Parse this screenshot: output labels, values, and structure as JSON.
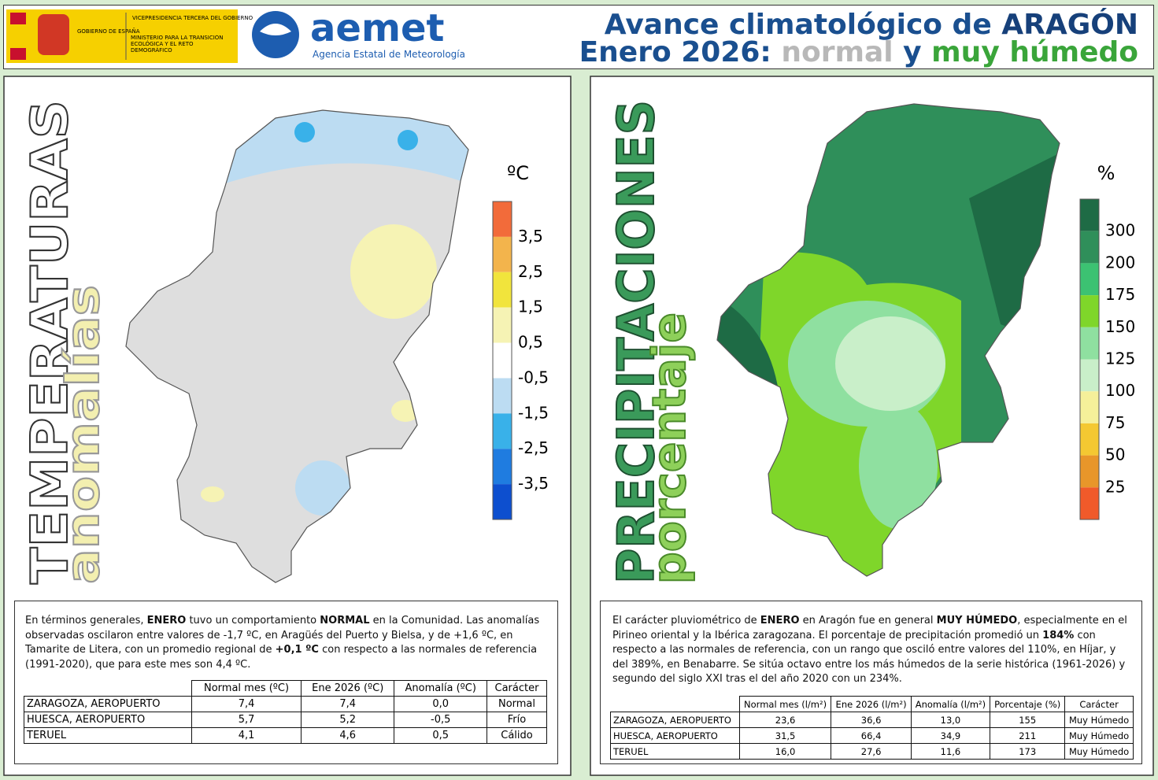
{
  "header": {
    "gov": [
      "GOBIERNO DE ESPAÑA",
      "VICEPRESIDENCIA TERCERA DEL GOBIERNO",
      "MINISTERIO PARA LA TRANSICIÓN ECOLÓGICA Y EL RETO DEMOGRÁFICO"
    ],
    "brand": "aemet",
    "agency": "Agencia Estatal de Meteorología",
    "title_line1": [
      {
        "text": "Avance climatológico de ",
        "color": "#1a4f8f"
      },
      {
        "text": "ARAGÓN",
        "color": "#16407a"
      }
    ],
    "title_line2": [
      {
        "text": "Enero 2026: ",
        "color": "#1a4f8f"
      },
      {
        "text": "normal",
        "color": "#b8b8b8"
      },
      {
        "text": " y ",
        "color": "#1a4f8f"
      },
      {
        "text": "muy húmedo",
        "color": "#3aa53a"
      }
    ]
  },
  "temperature": {
    "heading": "TEMPERATURAS",
    "subheading": "anomalías",
    "legend_unit": "ºC",
    "legend_colors": [
      "#f26b3a",
      "#f3b44c",
      "#f1e43c",
      "#f6f3b4",
      "#ffffff",
      "#bcdcf2",
      "#39b1e9",
      "#1f7ce0",
      "#0d4fcf"
    ],
    "legend_labels": [
      "3,5",
      "2,5",
      "1,5",
      "0,5",
      "-0,5",
      "-1,5",
      "-2,5",
      "-3,5"
    ],
    "paragraph": [
      "En términos generales, ",
      "ENERO",
      " tuvo un comportamiento ",
      "NORMAL",
      " en la Comunidad. Las anomalías observadas oscilaron entre valores de -1,7 ºC, en Aragüés del Puerto y Bielsa, y de +1,6 ºC, en Tamarite de Litera, con un promedio regional de ",
      "+0,1 ºC",
      " con respecto a las normales de referencia (1991-2020), que para este mes son 4,4 ºC."
    ],
    "table": {
      "header": [
        "Normal mes (ºC)",
        "Ene 2026 (ºC)",
        "Anomalía (ºC)",
        "Carácter"
      ],
      "rows": [
        [
          "ZARAGOZA, AEROPUERTO",
          "7,4",
          "7,4",
          "0,0",
          "Normal"
        ],
        [
          "HUESCA, AEROPUERTO",
          "5,7",
          "5,2",
          "-0,5",
          "Frío"
        ],
        [
          "TERUEL",
          "4,1",
          "4,6",
          "0,5",
          "Cálido"
        ]
      ]
    }
  },
  "precipitation": {
    "heading": "PRECIPITACIONES",
    "subheading": "porcentaje",
    "legend_unit": "%",
    "legend_colors": [
      "#1e6b45",
      "#2f8f5a",
      "#3cc272",
      "#7fd62a",
      "#8fe0a0",
      "#c9efc9",
      "#f5f09a",
      "#f4c832",
      "#e8962a",
      "#f05a2a"
    ],
    "legend_labels": [
      "300",
      "200",
      "175",
      "150",
      "125",
      "100",
      "75",
      "50",
      "25"
    ],
    "paragraph": [
      "El carácter pluviométrico de ",
      "ENERO",
      " en Aragón fue en general ",
      "MUY HÚMEDO",
      ", especialmente en el Pirineo oriental y la Ibérica zaragozana. El porcentaje de precipitación promedió un ",
      "184%",
      " con respecto a las normales de referencia, con un rango que osciló entre valores del 110%, en Híjar, y del 389%, en Benabarre. Se sitúa octavo entre los más húmedos de la serie histórica (1961-2026) y segundo del siglo XXI tras el del año 2020 con un 234%."
    ],
    "table": {
      "header": [
        "Normal mes (l/m²)",
        "Ene 2026 (l/m²)",
        "Anomalía (l/m²)",
        "Porcentaje (%)",
        "Carácter"
      ],
      "rows": [
        [
          "ZARAGOZA, AEROPUERTO",
          "23,6",
          "36,6",
          "13,0",
          "155",
          "Muy Húmedo"
        ],
        [
          "HUESCA, AEROPUERTO",
          "31,5",
          "66,4",
          "34,9",
          "211",
          "Muy Húmedo"
        ],
        [
          "TERUEL",
          "16,0",
          "27,6",
          "11,6",
          "173",
          "Muy Húmedo"
        ]
      ]
    }
  }
}
